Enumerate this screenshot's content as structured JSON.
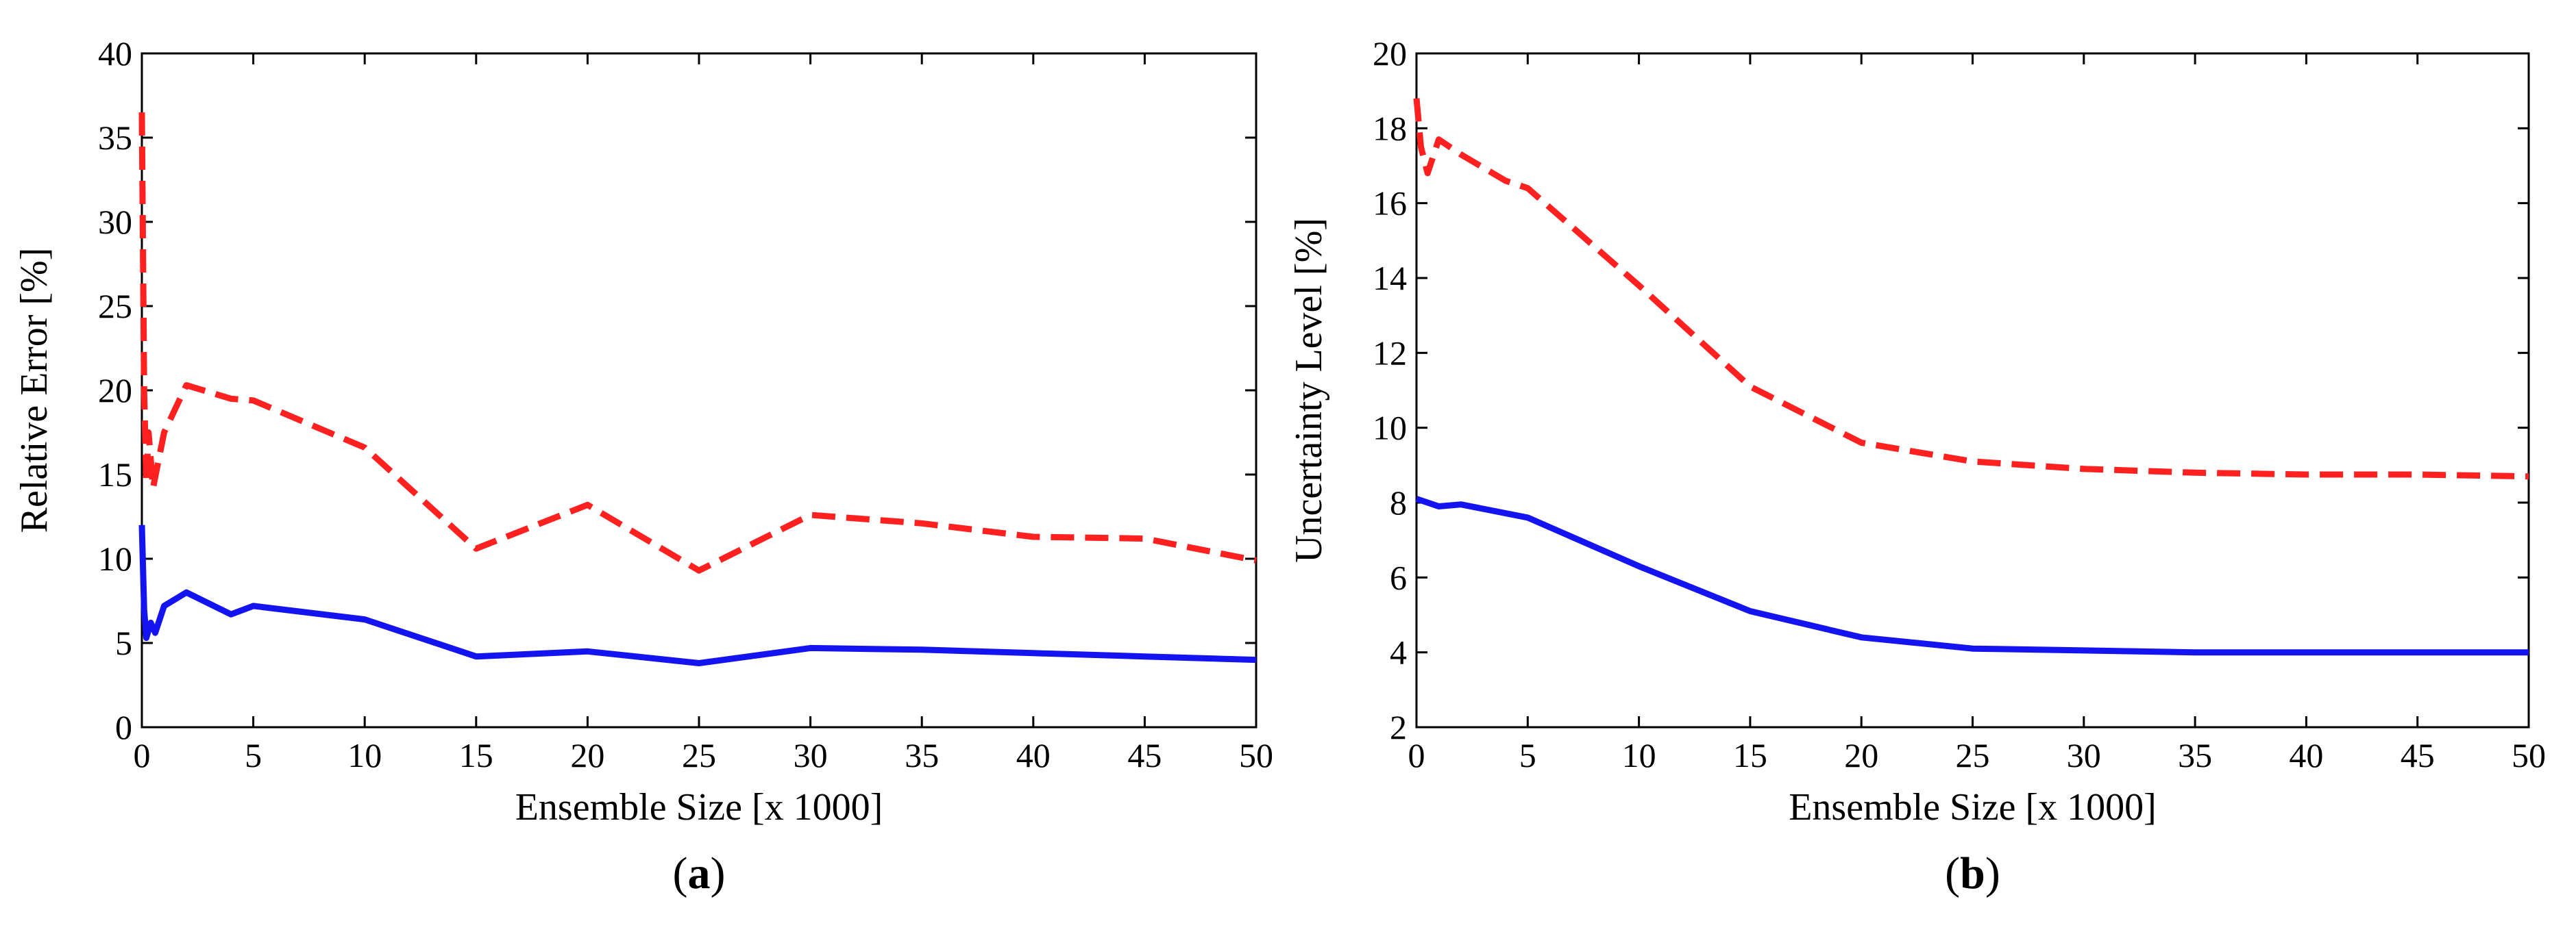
{
  "chart_data": [
    {
      "type": "line",
      "caption_letter": "a",
      "xlabel": "Ensemble Size [x 1000]",
      "ylabel": "Relative Error [%]",
      "xlim": [
        0,
        50
      ],
      "ylim": [
        0,
        40
      ],
      "xticks": [
        "0",
        "5",
        "10",
        "15",
        "20",
        "25",
        "30",
        "35",
        "40",
        "45",
        "50"
      ],
      "yticks": [
        "0",
        "5",
        "10",
        "15",
        "20",
        "25",
        "30",
        "35",
        "40"
      ],
      "grid": false,
      "series": [
        {
          "name": "dashed-red",
          "color": "#ff2020",
          "style": "dashed",
          "x": [
            0,
            0.1,
            0.2,
            0.3,
            0.5,
            1,
            2,
            4,
            5,
            10,
            15,
            20,
            25,
            30,
            35,
            40,
            45,
            50
          ],
          "y": [
            36.5,
            20,
            14.5,
            17.5,
            14.2,
            17.5,
            20.3,
            19.5,
            19.4,
            16.6,
            10.6,
            13.2,
            9.3,
            12.6,
            12.1,
            11.3,
            11.2,
            9.9
          ]
        },
        {
          "name": "solid-blue",
          "color": "#1414f0",
          "style": "solid",
          "x": [
            0,
            0.1,
            0.2,
            0.4,
            0.6,
            1,
            2,
            4,
            5,
            10,
            15,
            20,
            25,
            30,
            35,
            40,
            45,
            50
          ],
          "y": [
            12,
            7,
            5.3,
            6.2,
            5.6,
            7.2,
            8,
            6.7,
            7.2,
            6.4,
            4.2,
            4.5,
            3.8,
            4.7,
            4.6,
            4.4,
            4.2,
            4.0
          ]
        }
      ]
    },
    {
      "type": "line",
      "caption_letter": "b",
      "xlabel": "Ensemble Size [x 1000]",
      "ylabel": "Uncertainty Level [%]",
      "xlim": [
        0,
        50
      ],
      "ylim": [
        2,
        20
      ],
      "xticks": [
        "0",
        "5",
        "10",
        "15",
        "20",
        "25",
        "30",
        "35",
        "40",
        "45",
        "50"
      ],
      "yticks": [
        "2",
        "4",
        "6",
        "8",
        "10",
        "12",
        "14",
        "16",
        "18",
        "20"
      ],
      "grid": false,
      "series": [
        {
          "name": "dashed-red",
          "color": "#ff2020",
          "style": "dashed",
          "x": [
            0,
            0.2,
            0.5,
            1,
            2,
            4,
            5,
            10,
            15,
            20,
            25,
            30,
            35,
            40,
            45,
            50
          ],
          "y": [
            18.8,
            17.5,
            16.8,
            17.7,
            17.3,
            16.6,
            16.4,
            13.8,
            11.1,
            9.6,
            9.1,
            8.9,
            8.8,
            8.75,
            8.75,
            8.7
          ]
        },
        {
          "name": "solid-blue",
          "color": "#1414f0",
          "style": "solid",
          "x": [
            0,
            1,
            2,
            5,
            10,
            15,
            20,
            25,
            30,
            35,
            40,
            45,
            50
          ],
          "y": [
            8.1,
            7.9,
            7.95,
            7.6,
            6.3,
            5.1,
            4.4,
            4.1,
            4.05,
            4.0,
            4.0,
            4.0,
            4.0
          ]
        }
      ]
    }
  ]
}
